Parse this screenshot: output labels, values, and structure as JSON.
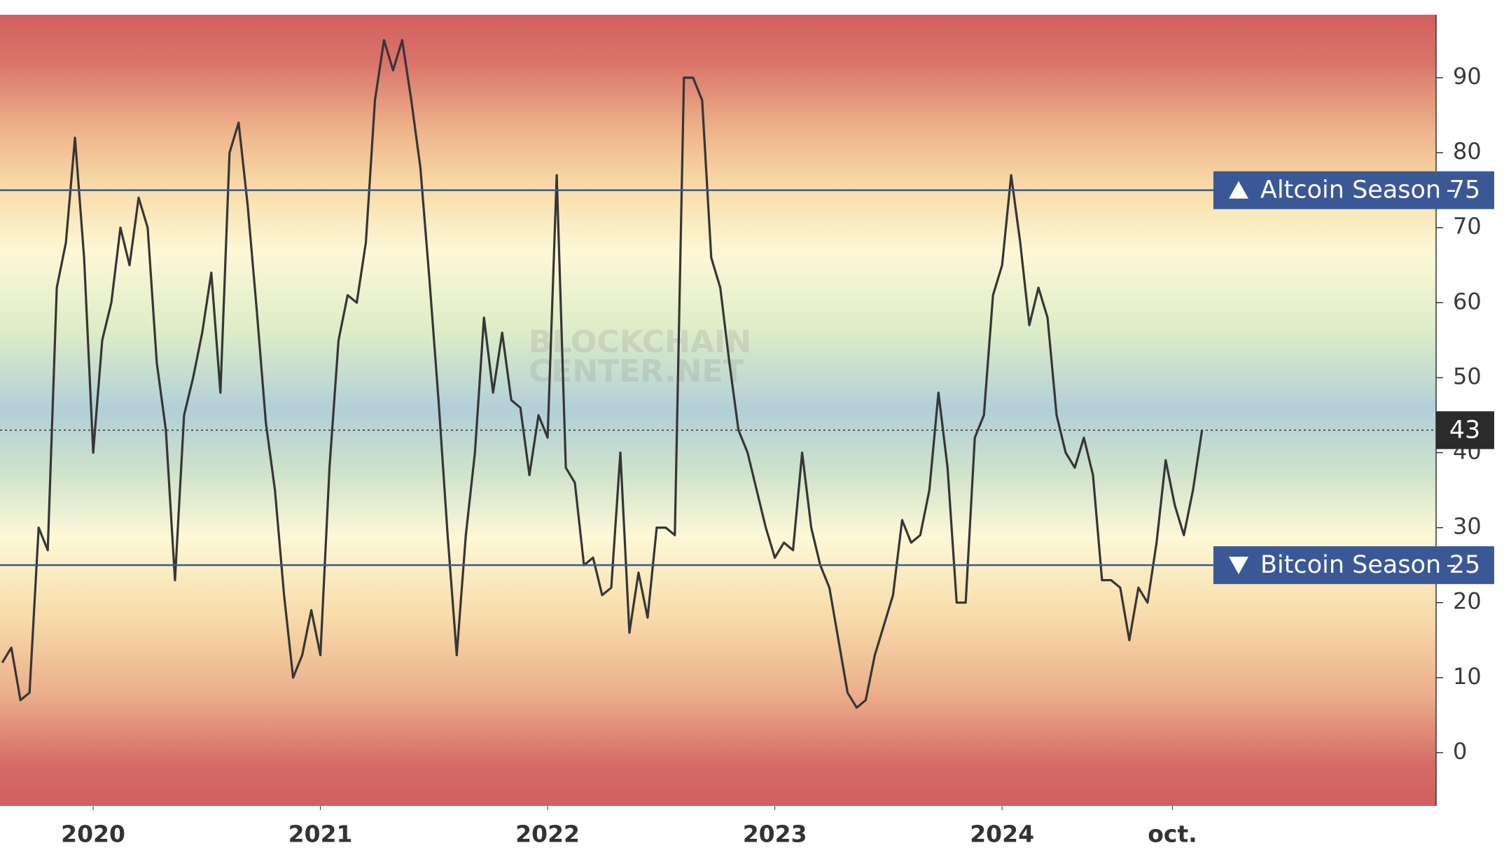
{
  "chart_data": {
    "type": "line",
    "x": [
      2019.6,
      2019.64,
      2019.68,
      2019.72,
      2019.76,
      2019.8,
      2019.84,
      2019.88,
      2019.92,
      2019.96,
      2020,
      2020.04,
      2020.08,
      2020.12,
      2020.16,
      2020.2,
      2020.24,
      2020.28,
      2020.32,
      2020.36,
      2020.4,
      2020.44,
      2020.48,
      2020.52,
      2020.56,
      2020.6,
      2020.64,
      2020.68,
      2020.72,
      2020.76,
      2020.8,
      2020.84,
      2020.88,
      2020.92,
      2020.96,
      2021,
      2021.04,
      2021.08,
      2021.12,
      2021.16,
      2021.2,
      2021.24,
      2021.28,
      2021.32,
      2021.36,
      2021.4,
      2021.44,
      2021.48,
      2021.52,
      2021.56,
      2021.6,
      2021.64,
      2021.68,
      2021.72,
      2021.76,
      2021.8,
      2021.84,
      2021.88,
      2021.92,
      2021.96,
      2022,
      2022.04,
      2022.08,
      2022.12,
      2022.16,
      2022.2,
      2022.24,
      2022.28,
      2022.32,
      2022.36,
      2022.4,
      2022.44,
      2022.48,
      2022.52,
      2022.56,
      2022.6,
      2022.64,
      2022.68,
      2022.72,
      2022.76,
      2022.8,
      2022.84,
      2022.88,
      2022.92,
      2022.96,
      2023,
      2023.04,
      2023.08,
      2023.12,
      2023.16,
      2023.2,
      2023.24,
      2023.28,
      2023.32,
      2023.36,
      2023.4,
      2023.44,
      2023.48,
      2023.52,
      2023.56,
      2023.6,
      2023.64,
      2023.68,
      2023.72,
      2023.76,
      2023.8,
      2023.84,
      2023.88,
      2023.92,
      2023.96,
      2024,
      2024.04,
      2024.08,
      2024.12,
      2024.16,
      2024.2,
      2024.24,
      2024.28,
      2024.32,
      2024.36,
      2024.4,
      2024.44,
      2024.48,
      2024.52,
      2024.56,
      2024.6,
      2024.64,
      2024.68,
      2024.72,
      2024.76,
      2024.8,
      2024.84,
      2024.88
    ],
    "series": [
      {
        "color": "#363636",
        "values": [
          12,
          14,
          7,
          8,
          30,
          27,
          62,
          68,
          82,
          66,
          40,
          55,
          60,
          70,
          65,
          74,
          70,
          52,
          43,
          23,
          45,
          50,
          56,
          64,
          48,
          80,
          84,
          73,
          59,
          44,
          35,
          21,
          10,
          13,
          19,
          13,
          38,
          55,
          61,
          60,
          68,
          87,
          95,
          91,
          95,
          87,
          78,
          63,
          47,
          29,
          13,
          29,
          40,
          58,
          48,
          56,
          47,
          46,
          37,
          45,
          42,
          77,
          38,
          36,
          25,
          26,
          21,
          22,
          40,
          16,
          24,
          18,
          30,
          30,
          29,
          90,
          90,
          87,
          66,
          62,
          52,
          43,
          40,
          35,
          30,
          26,
          28,
          27,
          40,
          30,
          25,
          22,
          15,
          8,
          6,
          7,
          13,
          17,
          21,
          31,
          28,
          29,
          35,
          48,
          38,
          20,
          20,
          42,
          45,
          61,
          65,
          77,
          68,
          57,
          62,
          58,
          45,
          40,
          38,
          42,
          37,
          23,
          23,
          22,
          15,
          22,
          20,
          28,
          39,
          33,
          29,
          35,
          43
        ]
      }
    ],
    "xlim": [
      2019.59,
      2025.91
    ],
    "xticks": [
      2020,
      2021,
      2022,
      2023,
      2024,
      {
        "value": 2024.75,
        "label": "oct."
      }
    ],
    "ylim": [
      -7.1,
      98.4
    ],
    "yticks": [
      0,
      10,
      20,
      30,
      40,
      50,
      60,
      70,
      80,
      90
    ],
    "thresholds": [
      {
        "label": "Altcoin Season",
        "value": 75
      },
      {
        "label": "Bitcoin Season",
        "value": 25
      }
    ],
    "threshold_color": "#3b5896",
    "current_color": "#2b2b2b",
    "watermark": [
      "BLOCKCHAIN",
      "CENTER.NET"
    ]
  }
}
